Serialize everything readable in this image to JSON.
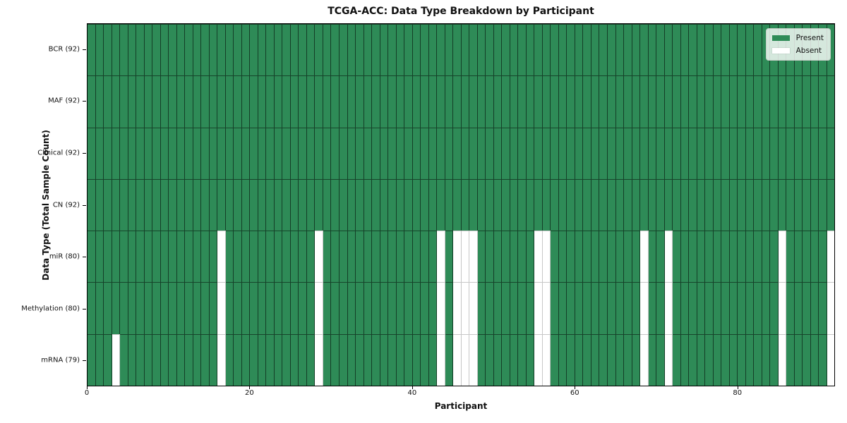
{
  "figure_title": "TCGA-ACC: Data Type Breakdown by Participant",
  "chart_data": {
    "type": "heatmap",
    "title": "TCGA-ACC: Data Type Breakdown by Participant",
    "xlabel": "Participant",
    "ylabel": "Data Type (Total Sample Count)",
    "n_participants": 92,
    "x_axis_range": [
      0,
      92
    ],
    "x_ticks": [
      0,
      20,
      40,
      60,
      80
    ],
    "grid": "cell-borders",
    "colors": {
      "present": "#2e8b57",
      "absent": "#ffffff"
    },
    "legend": {
      "position": "upper-right",
      "items": [
        {
          "label": "Present",
          "color": "#2e8b57"
        },
        {
          "label": "Absent",
          "color": "#ffffff"
        }
      ]
    },
    "rows": [
      {
        "label": "BCR (92)",
        "data_type": "BCR",
        "present_count": 92,
        "absent_participants": []
      },
      {
        "label": "MAF (92)",
        "data_type": "MAF",
        "present_count": 92,
        "absent_participants": []
      },
      {
        "label": "Clinical (92)",
        "data_type": "Clinical",
        "present_count": 92,
        "absent_participants": []
      },
      {
        "label": "CN (92)",
        "data_type": "CN",
        "present_count": 92,
        "absent_participants": []
      },
      {
        "label": "miR (80)",
        "data_type": "miR",
        "present_count": 80,
        "absent_participants": [
          16,
          28,
          43,
          45,
          46,
          47,
          55,
          56,
          68,
          71,
          85,
          91
        ]
      },
      {
        "label": "Methylation (80)",
        "data_type": "Methylation",
        "present_count": 80,
        "absent_participants": [
          16,
          28,
          43,
          45,
          46,
          47,
          55,
          56,
          68,
          71,
          85,
          91
        ]
      },
      {
        "label": "mRNA (79)",
        "data_type": "mRNA",
        "present_count": 79,
        "absent_participants": [
          3,
          16,
          28,
          43,
          45,
          46,
          47,
          55,
          56,
          68,
          71,
          85,
          91
        ]
      }
    ]
  }
}
